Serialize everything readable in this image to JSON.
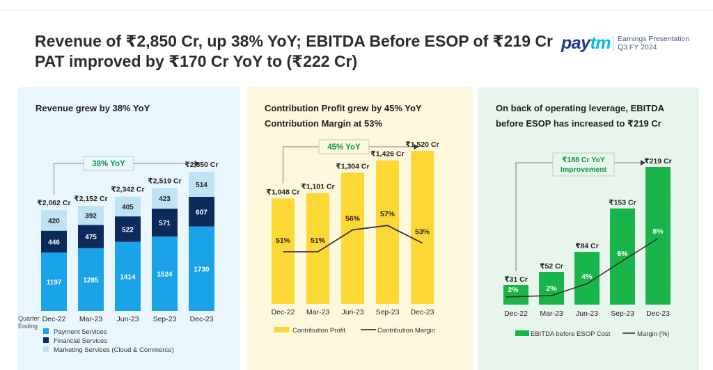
{
  "header": {
    "title_line1": "Revenue of ₹2,850 Cr, up 38% YoY; EBITDA Before ESOP of ₹219 Cr",
    "title_line2": "PAT improved by ₹170 Cr YoY to (₹222 Cr)",
    "brand_pay": "pay",
    "brand_tm": "tm",
    "brand_line1": "Earnings Presentation",
    "brand_line2": "Q3 FY 2024"
  },
  "colors": {
    "payment": "#1aa3e8",
    "financial": "#0d2a5c",
    "marketing": "#bfe3f5",
    "contribution": "#fdd835",
    "margin_line": "#333333",
    "ebitda": "#1ab54a"
  },
  "chart_data": [
    {
      "type": "bar",
      "stacked": true,
      "title": "Revenue grew by 38% YoY",
      "xlabel": "Quarter Ending",
      "categories": [
        "Dec-22",
        "Mar-23",
        "Jun-23",
        "Sep-23",
        "Dec-23"
      ],
      "totals": [
        "₹2,062 Cr",
        "₹2,152 Cr",
        "₹2,342 Cr",
        "₹2,519 Cr",
        "₹2,850 Cr"
      ],
      "series": [
        {
          "name": "Payment Services",
          "values": [
            1197,
            1285,
            1414,
            1524,
            1730
          ]
        },
        {
          "name": "Financial Services",
          "values": [
            446,
            475,
            522,
            571,
            607
          ]
        },
        {
          "name": "Marketing Services (Cloud & Commerce)",
          "values": [
            420,
            392,
            405,
            423,
            514
          ]
        }
      ],
      "annotation": "38% YoY",
      "ylim": [
        0,
        2900
      ]
    },
    {
      "type": "bar+line",
      "title_line1": "Contribution Profit grew by 45% YoY",
      "title_line2": "Contribution Margin at 53%",
      "categories": [
        "Dec-22",
        "Mar-23",
        "Jun-23",
        "Sep-23",
        "Dec-23"
      ],
      "bar_labels": [
        "₹1,048 Cr",
        "₹1,101 Cr",
        "₹1,304 Cr",
        "₹1,426 Cr",
        "₹1,520 Cr"
      ],
      "series": [
        {
          "name": "Contribution Profit",
          "values": [
            1048,
            1101,
            1304,
            1426,
            1520
          ]
        },
        {
          "name": "Contribution Margin",
          "values": [
            51,
            51,
            56,
            57,
            53
          ],
          "labels": [
            "51%",
            "51%",
            "56%",
            "57%",
            "53%"
          ]
        }
      ],
      "annotation": "45% YoY",
      "ylim": [
        0,
        1550
      ],
      "margin_ylim": [
        0,
        100
      ]
    },
    {
      "type": "bar+line",
      "title_line1": "On back of operating leverage, EBITDA",
      "title_line2": "before ESOP has increased to ₹219 Cr",
      "categories": [
        "Dec-22",
        "Mar-23",
        "Jun-23",
        "Sep-23",
        "Dec-23"
      ],
      "bar_labels": [
        "₹31 Cr",
        "₹52 Cr",
        "₹84 Cr",
        "₹153 Cr",
        "₹219 Cr"
      ],
      "series": [
        {
          "name": "EBITDA before ESOP Cost",
          "values": [
            31,
            52,
            84,
            153,
            219
          ]
        },
        {
          "name": "Margin (%)",
          "values": [
            2,
            2,
            4,
            6,
            8
          ],
          "labels": [
            "2%",
            "2%",
            "4%",
            "6%",
            "8%"
          ]
        }
      ],
      "annotation_line1": "₹188 Cr YoY",
      "annotation_line2": "Improvement",
      "ylim": [
        0,
        219
      ],
      "margin_ylim": [
        0,
        10
      ]
    }
  ]
}
